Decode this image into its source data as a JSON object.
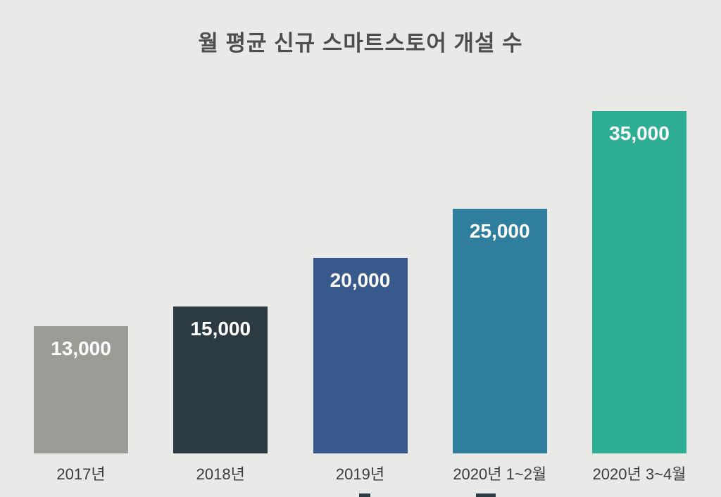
{
  "title": "월 평균 신규 스마트스토어 개설 수",
  "chart_data": {
    "type": "bar",
    "title": "월 평균 신규 스마트스토어 개설 수",
    "categories": [
      "2017년",
      "2018년",
      "2019년",
      "2020년 1~2월",
      "2020년 3~4월"
    ],
    "values": [
      13000,
      15000,
      20000,
      25000,
      35000
    ],
    "value_labels": [
      "13,000",
      "15,000",
      "20,000",
      "25,000",
      "35,000"
    ],
    "bar_colors": [
      "#9c9c96",
      "#2b3b41",
      "#38598b",
      "#2f7e9e",
      "#2fae96"
    ],
    "background_color": "#e9e9e8",
    "title_color": "#4d4d4d",
    "value_label_color": "#ffffff",
    "axis_label_color": "#3c3c3c",
    "xlabel": "",
    "ylabel": "",
    "ylim": [
      0,
      35000
    ],
    "grid": false,
    "legend": "none"
  }
}
